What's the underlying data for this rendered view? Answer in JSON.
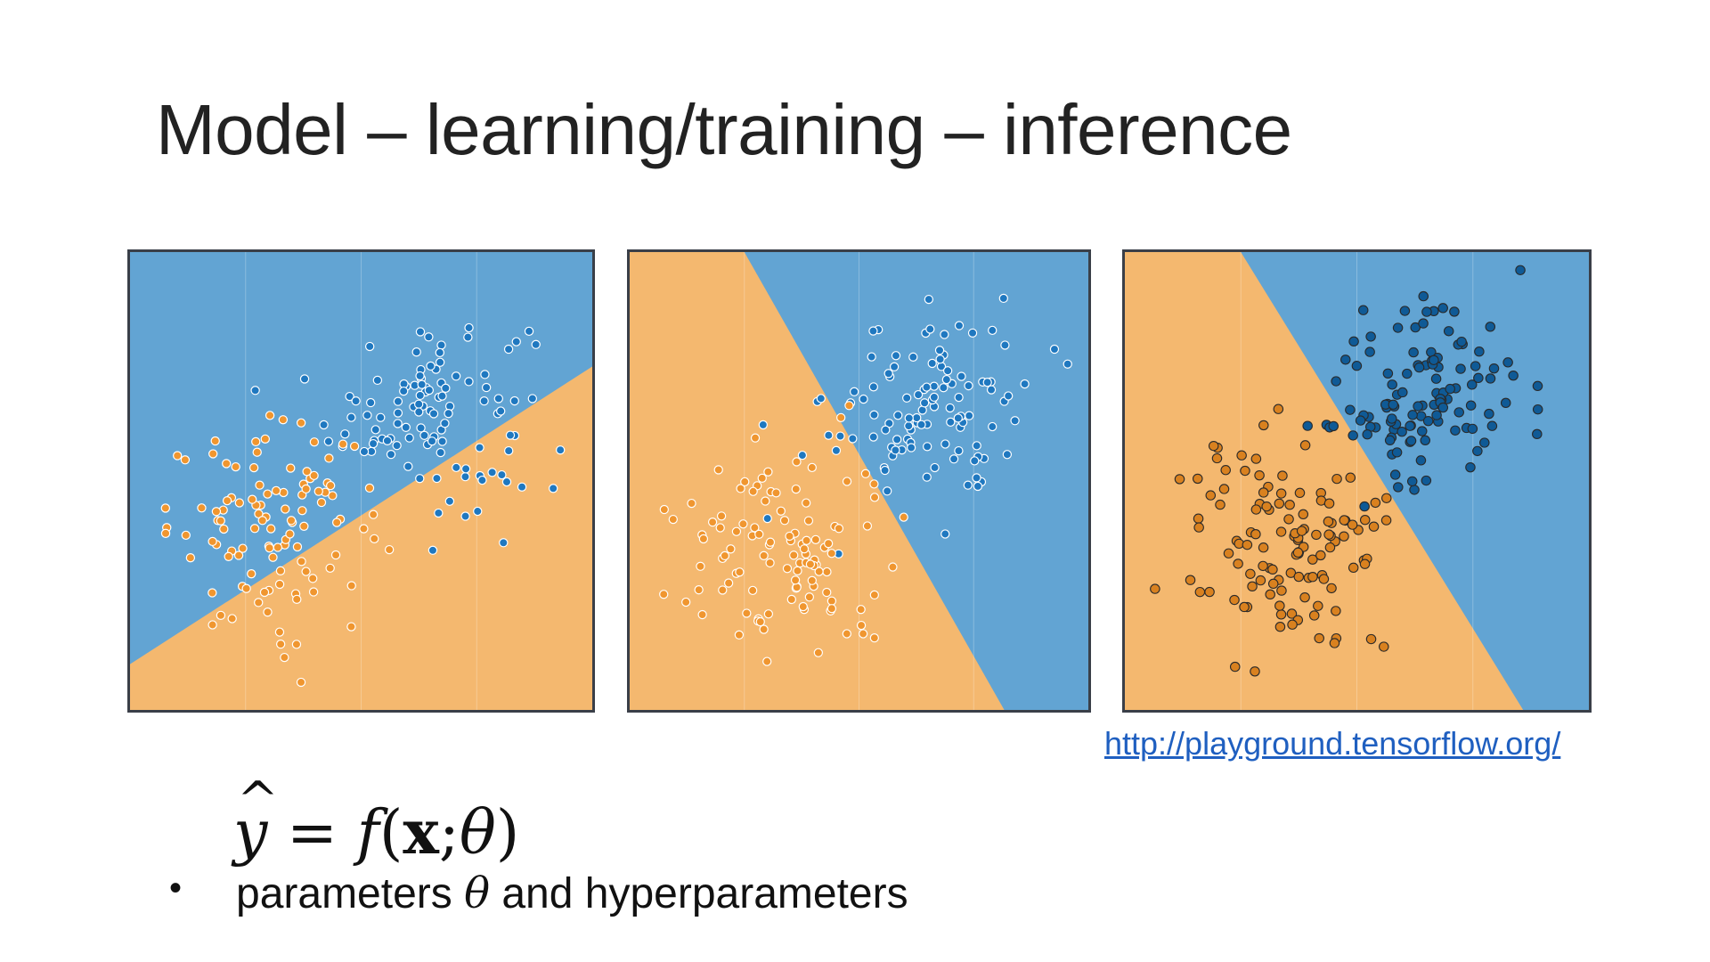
{
  "slide": {
    "title": "Model – learning/training – inference",
    "link": "http://playground.tensorflow.org/",
    "formula": {
      "y": "y",
      "hat": "^",
      "equals": " = ",
      "f": "f",
      "open": "(",
      "x": "x",
      "sep": ";",
      "theta": "θ",
      "close": ")"
    },
    "bullet": {
      "marker": "•",
      "text_before": "parameters ",
      "theta": "θ",
      "text_after": " and hyperparameters"
    }
  },
  "colors": {
    "blue_region": "#62a4d3",
    "orange_region": "#f4b86f",
    "blue_point": "#1f78c0",
    "orange_point": "#f0962f",
    "dark_blue_point": "#0f5a96",
    "dark_orange_point": "#d9811f",
    "link": "#1f5fc0"
  },
  "chart_data": [
    {
      "type": "scatter",
      "boundary": {
        "p1": [
          -6,
          -4.8
        ],
        "p2": [
          6,
          3.0
        ]
      },
      "series": [
        {
          "class": "blue",
          "center": [
            1.8,
            1.9
          ],
          "spread": [
            1.3,
            1.3
          ],
          "count": 110
        },
        {
          "class": "orange",
          "center": [
            -2.2,
            -1.3
          ],
          "spread": [
            1.4,
            1.3
          ],
          "count": 110
        }
      ]
    },
    {
      "type": "scatter",
      "boundary": {
        "p1": [
          -3.0,
          6
        ],
        "p2": [
          3.8,
          -6
        ]
      },
      "series": [
        {
          "class": "blue",
          "center": [
            1.8,
            2.0
          ],
          "spread": [
            1.3,
            1.3
          ],
          "count": 110
        },
        {
          "class": "orange",
          "center": [
            -2.0,
            -1.8
          ],
          "spread": [
            1.4,
            1.4
          ],
          "count": 110
        }
      ]
    },
    {
      "type": "scatter",
      "boundary": {
        "p1": [
          -3.0,
          6
        ],
        "p2": [
          4.3,
          -6
        ]
      },
      "series": [
        {
          "class": "blue",
          "center": [
            1.8,
            2.2
          ],
          "spread": [
            1.3,
            1.3
          ],
          "count": 120
        },
        {
          "class": "orange",
          "center": [
            -1.8,
            -1.8
          ],
          "spread": [
            1.3,
            1.4
          ],
          "count": 120
        }
      ]
    }
  ]
}
